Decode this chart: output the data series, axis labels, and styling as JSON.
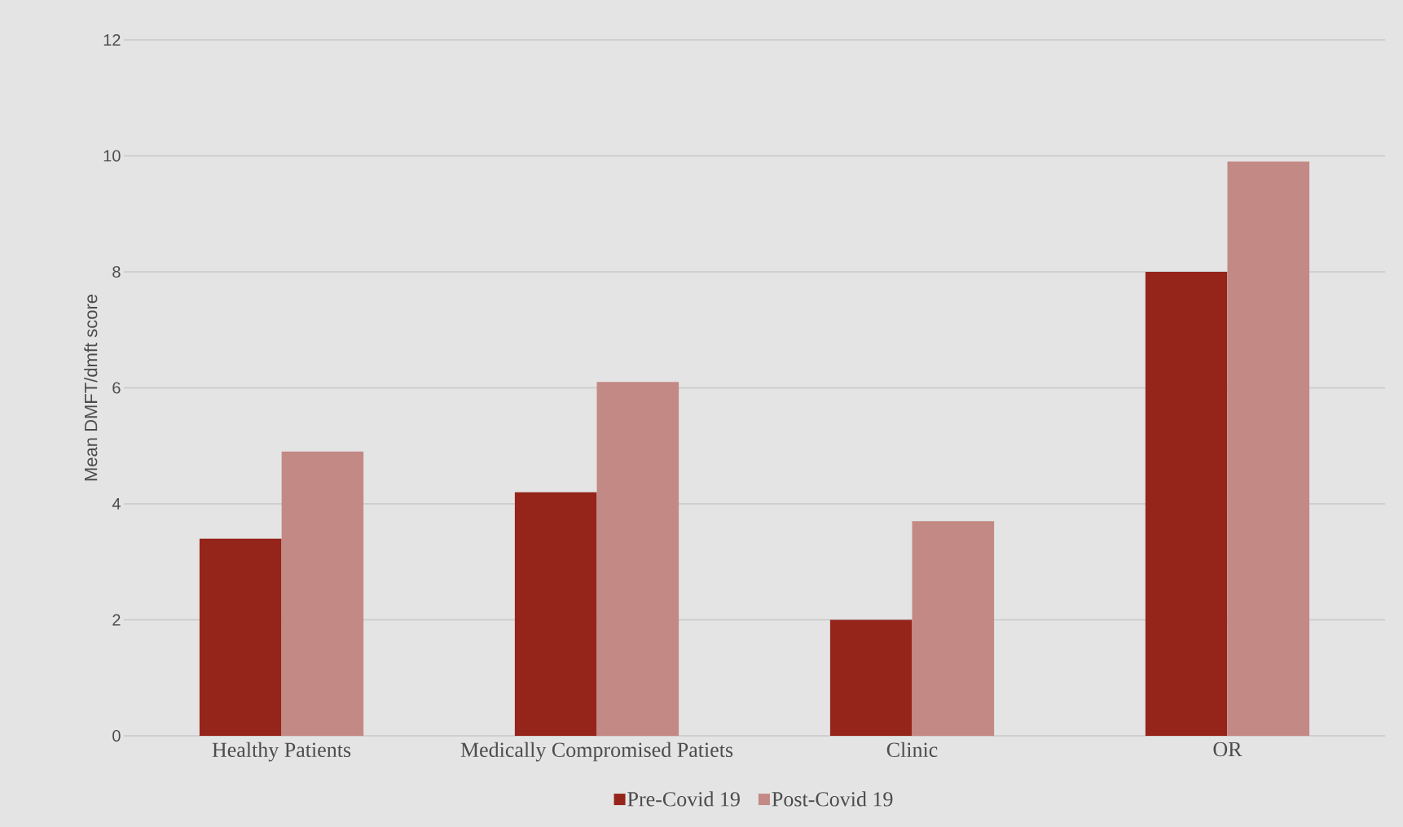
{
  "chart_data": {
    "type": "bar",
    "ylabel": "Mean DMFT/dmft score",
    "categories": [
      "Healthy Patients",
      "Medically Compromised Patiets",
      "Clinic",
      "OR"
    ],
    "series": [
      {
        "name": "Pre-Covid 19",
        "color": "#95241a",
        "values": [
          3.4,
          4.2,
          2.0,
          8.0
        ]
      },
      {
        "name": "Post-Covid 19",
        "color": "#c38985",
        "values": [
          4.9,
          6.1,
          3.7,
          9.9
        ]
      }
    ],
    "ylim": [
      0,
      12
    ],
    "yticks": [
      0,
      2,
      4,
      6,
      8,
      10,
      12
    ],
    "grid": "y",
    "legend": "bottom"
  }
}
